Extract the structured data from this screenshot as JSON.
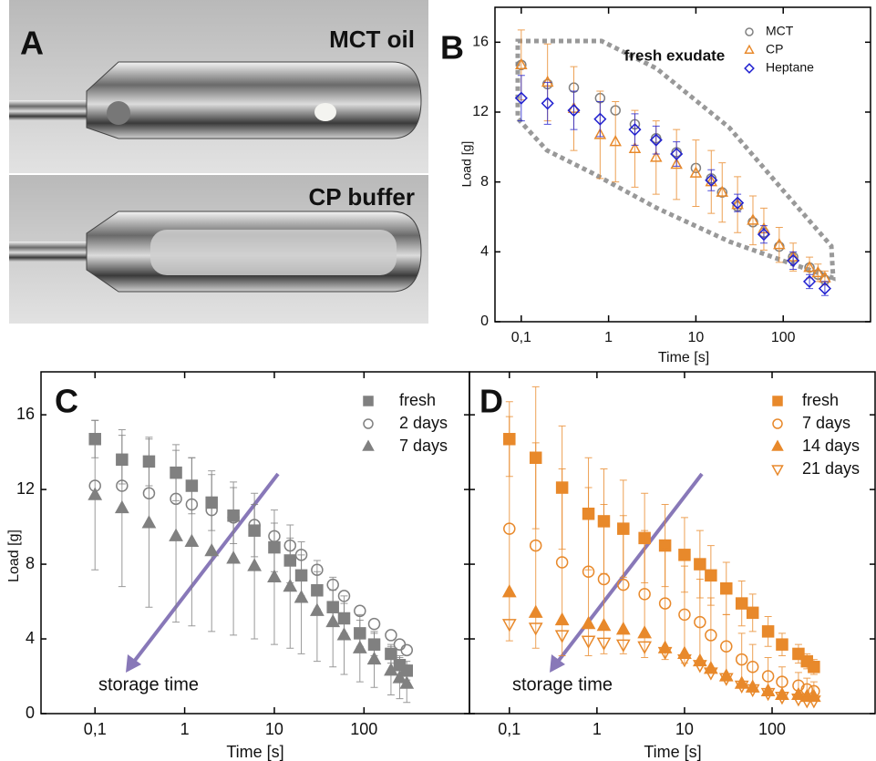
{
  "photo": {
    "label": "A",
    "captions": [
      "MCT oil",
      "CP buffer"
    ]
  },
  "chart_data": [
    {
      "type": "scatter",
      "panel_label": "B",
      "x_label": "Time [s]",
      "y_label": "Load [g]",
      "annotation": "fresh exudate",
      "xscale": "log",
      "legend": "upper right",
      "xlim": [
        0.05,
        1000
      ],
      "ylim": [
        0,
        18
      ],
      "xticks": [
        {
          "value": 0.1,
          "label": "0,1"
        },
        1,
        10,
        100
      ],
      "yticks": [
        0,
        4,
        8,
        12,
        16
      ],
      "x": [
        0.1,
        0.2,
        0.4,
        0.8,
        1.2,
        2,
        3.5,
        6,
        10,
        15,
        20,
        30,
        45,
        60,
        90,
        130,
        200,
        250,
        300
      ],
      "series": [
        {
          "name": "MCT",
          "color": "#808080",
          "marker": "circle",
          "filled": false,
          "values": [
            14.7,
            13.6,
            13.4,
            12.8,
            12.1,
            11.3,
            10.5,
            9.7,
            8.8,
            8.2,
            7.4,
            6.6,
            5.7,
            5.1,
            4.3,
            3.7,
            3.1,
            2.7,
            2.4
          ]
        },
        {
          "name": "CP",
          "color": "#e8892b",
          "marker": "triangle",
          "filled": false,
          "values": [
            14.7,
            13.7,
            12.2,
            10.7,
            10.3,
            9.9,
            9.4,
            9.0,
            8.5,
            8.0,
            7.4,
            6.7,
            5.8,
            5.3,
            4.4,
            3.7,
            3.1,
            2.8,
            2.5
          ],
          "errors": [
            2,
            2.2,
            2.4,
            2.5,
            2.3,
            2.2,
            2.1,
            2,
            1.9,
            1.8,
            1.7,
            1.6,
            1.4,
            1.2,
            1,
            0.8,
            0.6,
            0.5,
            0.4
          ]
        },
        {
          "name": "Heptane",
          "color": "#2020d0",
          "marker": "diamond",
          "filled": false,
          "values": [
            12.8,
            12.5,
            12.1,
            11.6,
            null,
            11.0,
            10.4,
            9.6,
            null,
            8.1,
            null,
            6.8,
            null,
            5.0,
            null,
            3.5,
            2.3,
            null,
            1.9
          ],
          "errors": [
            1.3,
            1.2,
            1.1,
            1.0,
            null,
            0.9,
            0.8,
            0.7,
            null,
            0.6,
            null,
            0.5,
            null,
            0.5,
            null,
            0.5,
            0.4,
            null,
            0.4
          ]
        }
      ]
    },
    {
      "type": "scatter",
      "panel_label": "C",
      "x_label": "Time [s]",
      "y_label": "Load [g]",
      "annotation": "storage time",
      "xscale": "log",
      "legend": "upper right",
      "xlim": [
        0.025,
        1500
      ],
      "ylim": [
        0,
        18.3
      ],
      "xticks": [
        {
          "value": 0.1,
          "label": "0,1"
        },
        1,
        10,
        100
      ],
      "yticks": [
        0,
        4,
        8,
        12,
        16
      ],
      "x": [
        0.1,
        0.2,
        0.4,
        0.8,
        1.2,
        2,
        3.5,
        6,
        10,
        15,
        20,
        30,
        45,
        60,
        90,
        130,
        200,
        250,
        300
      ],
      "series": [
        {
          "name": "fresh",
          "color": "#808080",
          "marker": "square",
          "filled": true,
          "values": [
            14.7,
            13.6,
            13.5,
            12.9,
            12.2,
            11.3,
            10.6,
            9.8,
            8.9,
            8.2,
            7.4,
            6.6,
            5.7,
            5.1,
            4.3,
            3.7,
            3.2,
            2.6,
            2.3
          ],
          "errors": [
            1,
            1.3,
            1.3,
            1.5,
            1.5,
            1.5,
            1.5,
            1.4,
            1.3,
            1.2,
            1.1,
            1,
            0.9,
            0.8,
            0.7,
            0.6,
            0.5,
            0.5,
            0.5
          ]
        },
        {
          "name": "2 days",
          "color": "#808080",
          "marker": "circle",
          "filled": false,
          "values": [
            12.2,
            12.2,
            11.8,
            11.5,
            11.2,
            10.9,
            10.5,
            10.1,
            9.5,
            9.0,
            8.5,
            7.7,
            6.9,
            6.3,
            5.5,
            4.8,
            4.2,
            3.7,
            3.4
          ]
        },
        {
          "name": "7 days",
          "color": "#808080",
          "marker": "triangle",
          "filled": true,
          "values": [
            11.7,
            11.0,
            10.2,
            9.5,
            9.2,
            8.7,
            8.3,
            7.9,
            7.3,
            6.8,
            6.2,
            5.5,
            4.9,
            4.2,
            3.5,
            2.9,
            2.3,
            1.9,
            1.6
          ],
          "errors": [
            4,
            4.2,
            4.5,
            4.6,
            4.5,
            4.3,
            4.1,
            3.9,
            3.6,
            3.3,
            3,
            2.7,
            2.4,
            2.1,
            1.8,
            1.5,
            1.3,
            1.1,
            1
          ]
        }
      ]
    },
    {
      "type": "scatter",
      "panel_label": "D",
      "x_label": "Time [s]",
      "annotation": "storage time",
      "xscale": "log",
      "legend": "upper right",
      "xlim": [
        0.035,
        1500
      ],
      "ylim": [
        0,
        18.3
      ],
      "xticks": [
        {
          "value": 0.1,
          "label": "0,1"
        },
        1,
        10,
        100
      ],
      "yticks": [
        0,
        4,
        8,
        12,
        16
      ],
      "x": [
        0.1,
        0.2,
        0.4,
        0.8,
        1.2,
        2,
        3.5,
        6,
        10,
        15,
        20,
        30,
        45,
        60,
        90,
        130,
        200,
        250,
        300
      ],
      "series": [
        {
          "name": "fresh",
          "color": "#e8892b",
          "marker": "square",
          "filled": true,
          "values": [
            14.7,
            13.7,
            12.1,
            10.7,
            10.3,
            9.9,
            9.4,
            9.0,
            8.5,
            8.0,
            7.4,
            6.7,
            5.9,
            5.4,
            4.4,
            3.7,
            3.2,
            2.8,
            2.5
          ],
          "errors": [
            2,
            3.8,
            3.3,
            3,
            2.8,
            2.6,
            2.4,
            2.2,
            2,
            1.8,
            1.6,
            1.4,
            1.2,
            1,
            0.8,
            0.6,
            0.5,
            0.4,
            0.4
          ]
        },
        {
          "name": "7 days",
          "color": "#e8892b",
          "marker": "circle",
          "filled": false,
          "values": [
            9.9,
            9.0,
            8.1,
            7.6,
            7.2,
            6.9,
            6.4,
            5.9,
            5.3,
            4.9,
            4.2,
            3.6,
            2.9,
            2.5,
            2.0,
            1.7,
            1.5,
            1.3,
            1.2
          ],
          "errors": [
            6,
            5.5,
            5,
            4.5,
            4,
            3.7,
            3.4,
            3,
            2.6,
            2.3,
            2,
            1.7,
            1.4,
            1.2,
            1,
            0.8,
            0.7,
            0.6,
            0.5
          ]
        },
        {
          "name": "14 days",
          "color": "#e8892b",
          "marker": "triangle",
          "filled": true,
          "values": [
            6.5,
            5.4,
            5.0,
            4.8,
            4.7,
            4.5,
            4.3,
            3.5,
            3.2,
            2.8,
            2.4,
            2.0,
            1.6,
            1.4,
            1.2,
            1.0,
            1.0,
            0.9,
            0.9
          ]
        },
        {
          "name": "21 days",
          "color": "#e8892b",
          "marker": "triangle-down",
          "filled": false,
          "values": [
            4.8,
            4.6,
            4.2,
            3.9,
            3.8,
            3.7,
            3.6,
            3.3,
            2.9,
            2.6,
            2.2,
            1.9,
            1.5,
            1.3,
            1.1,
            0.9,
            0.8,
            0.7,
            0.7
          ]
        }
      ]
    }
  ]
}
